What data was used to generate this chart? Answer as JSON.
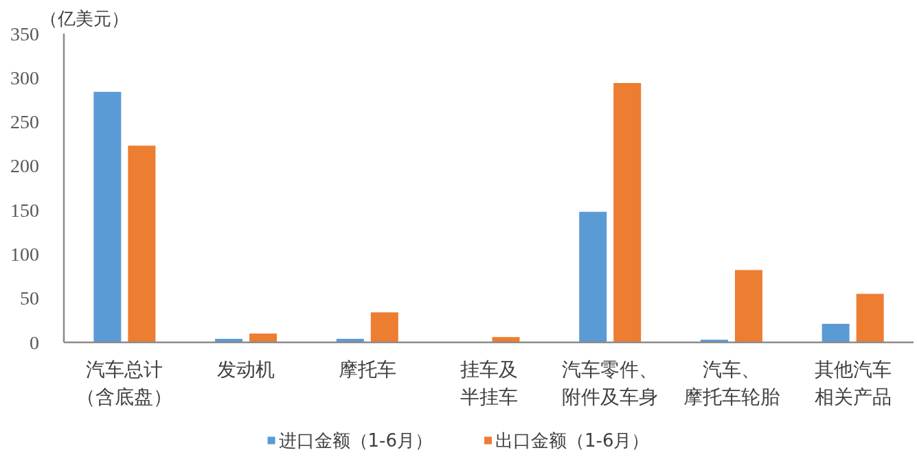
{
  "chart_data": {
    "type": "bar",
    "ylabel": "（亿美元）",
    "categories": [
      "汽车总计（含底盘）",
      "发动机",
      "摩托车",
      "挂车及半挂车",
      "汽车零件、附件及车身",
      "汽车、摩托车轮胎",
      "其他汽车相关产品"
    ],
    "series": [
      {
        "name": "进口金额（1-6月）",
        "color": "#5b9bd5",
        "values": [
          284,
          4,
          4,
          null,
          148,
          3,
          21
        ]
      },
      {
        "name": "出口金额（1-6月）",
        "color": "#ed7d31",
        "values": [
          223,
          10,
          34,
          6,
          294,
          82,
          55
        ]
      }
    ],
    "ylim": [
      0,
      350
    ],
    "yticks": [
      0,
      50,
      100,
      150,
      200,
      250,
      300,
      350
    ],
    "grid": false,
    "legend": "bottom"
  }
}
